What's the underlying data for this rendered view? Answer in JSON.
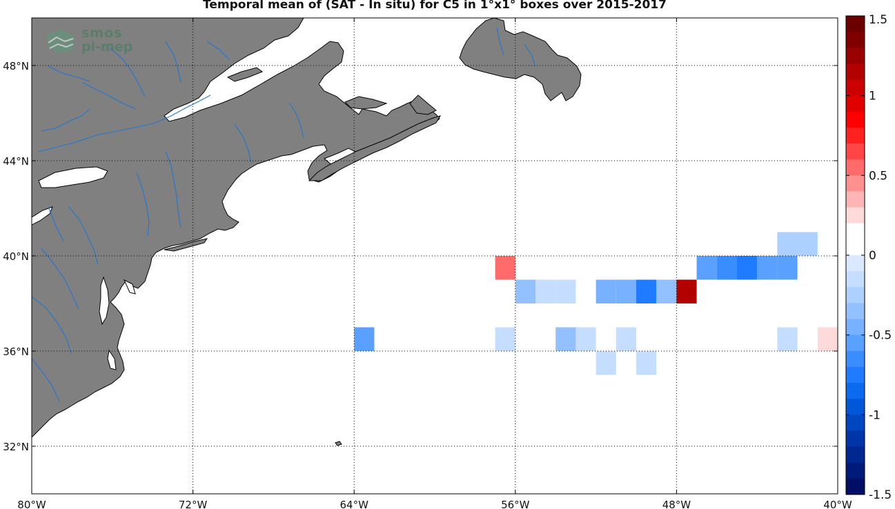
{
  "title": "Temporal mean of (SAT - In situ) for C5 in 1°x1° boxes over 2015-2017",
  "logo": {
    "line1": "smos",
    "line2": "pi-mep",
    "icon": "smos-pimep-logo-icon"
  },
  "map": {
    "lon_range": [
      -80,
      -40
    ],
    "lat_range": [
      30,
      50
    ],
    "grid": true,
    "lon_ticks": [
      {
        "value": -80,
        "label": "80°W"
      },
      {
        "value": -72,
        "label": "72°W"
      },
      {
        "value": -64,
        "label": "64°W"
      },
      {
        "value": -56,
        "label": "56°W"
      },
      {
        "value": -48,
        "label": "48°W"
      },
      {
        "value": -40,
        "label": "40°W"
      }
    ],
    "lat_ticks": [
      {
        "value": 32,
        "label": "32°N"
      },
      {
        "value": 36,
        "label": "36°N"
      },
      {
        "value": 40,
        "label": "40°N"
      },
      {
        "value": 44,
        "label": "44°N"
      },
      {
        "value": 48,
        "label": "48°N"
      }
    ],
    "land_color": "#808080",
    "river_color": "#1f77d0",
    "coast_color": "#000000"
  },
  "colorbar": {
    "range": [
      -1.5,
      1.5
    ],
    "ticks": [
      {
        "value": 1.5,
        "label": "1.5"
      },
      {
        "value": 1,
        "label": "1"
      },
      {
        "value": 0.5,
        "label": "0.5"
      },
      {
        "value": 0,
        "label": "0"
      },
      {
        "value": -0.5,
        "label": "-0.5"
      },
      {
        "value": -1,
        "label": "-1"
      },
      {
        "value": -1.5,
        "label": "-1.5"
      }
    ],
    "colors_top_to_bottom": [
      "#6b0000",
      "#800000",
      "#990000",
      "#b30000",
      "#cc0000",
      "#e00000",
      "#ff0000",
      "#ff2020",
      "#ff4545",
      "#ff6a6a",
      "#ff9090",
      "#ffb5b5",
      "#ffdada",
      "#ffffff",
      "#ffffff",
      "#dae9ff",
      "#c5ddff",
      "#acd0ff",
      "#93c1ff",
      "#78b1ff",
      "#5aa0ff",
      "#3a8dff",
      "#1f7bff",
      "#0a6af0",
      "#0058d8",
      "#0046c0",
      "#0035a8",
      "#002690",
      "#001a7a",
      "#000e66"
    ]
  },
  "chart_data": {
    "type": "heatmap",
    "title": "Temporal mean of (SAT - In situ) for C5 in 1°x1° boxes over 2015-2017",
    "xlabel": "",
    "ylabel": "",
    "xlim": [
      -80,
      -40
    ],
    "ylim": [
      30,
      50
    ],
    "color_scale": [
      -1.5,
      1.5
    ],
    "cells": [
      {
        "lon": -57,
        "lat": 39,
        "value": 0.6
      },
      {
        "lon": -56,
        "lat": 38,
        "value": -0.3
      },
      {
        "lon": -55,
        "lat": 38,
        "value": -0.1
      },
      {
        "lon": -54,
        "lat": 38,
        "value": -0.1
      },
      {
        "lon": -52,
        "lat": 38,
        "value": -0.4
      },
      {
        "lon": -51,
        "lat": 38,
        "value": -0.4
      },
      {
        "lon": -50,
        "lat": 38,
        "value": -0.7
      },
      {
        "lon": -49,
        "lat": 38,
        "value": -0.3
      },
      {
        "lon": -48,
        "lat": 38,
        "value": 1.1
      },
      {
        "lon": -47,
        "lat": 39,
        "value": -0.5
      },
      {
        "lon": -46,
        "lat": 39,
        "value": -0.6
      },
      {
        "lon": -45,
        "lat": 39,
        "value": -0.7
      },
      {
        "lon": -44,
        "lat": 39,
        "value": -0.5
      },
      {
        "lon": -43,
        "lat": 39,
        "value": -0.5
      },
      {
        "lon": -43,
        "lat": 40,
        "value": -0.2
      },
      {
        "lon": -42,
        "lat": 40,
        "value": -0.2
      },
      {
        "lon": -64,
        "lat": 36,
        "value": -0.5
      },
      {
        "lon": -57,
        "lat": 36,
        "value": -0.1
      },
      {
        "lon": -56,
        "lat": 36,
        "value": 0.1
      },
      {
        "lon": -54,
        "lat": 36,
        "value": -0.3
      },
      {
        "lon": -53,
        "lat": 36,
        "value": -0.1
      },
      {
        "lon": -51,
        "lat": 36,
        "value": -0.1
      },
      {
        "lon": -49,
        "lat": 36,
        "value": 0.1
      },
      {
        "lon": -43,
        "lat": 36,
        "value": -0.1
      },
      {
        "lon": -41,
        "lat": 36,
        "value": 0.25
      },
      {
        "lon": -52,
        "lat": 35,
        "value": -0.1
      },
      {
        "lon": -50,
        "lat": 35,
        "value": -0.1
      },
      {
        "lon": -48,
        "lat": 35,
        "value": 0.1
      },
      {
        "lon": -44,
        "lat": 35,
        "value": 0.1
      }
    ]
  }
}
